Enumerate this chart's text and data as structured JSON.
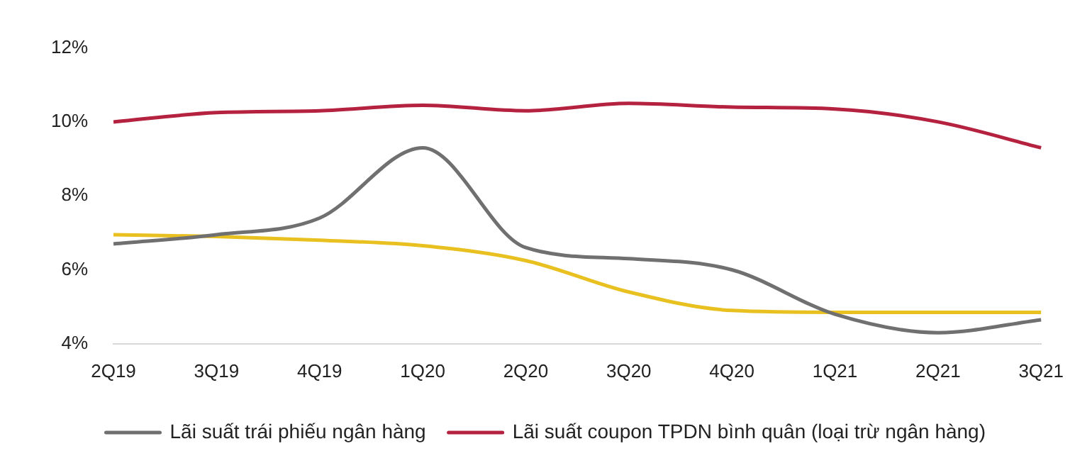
{
  "chart_data": {
    "type": "line",
    "categories": [
      "2Q19",
      "3Q19",
      "4Q19",
      "1Q20",
      "2Q20",
      "3Q20",
      "4Q20",
      "1Q21",
      "2Q21",
      "3Q21"
    ],
    "series": [
      {
        "name": "Lãi suất trái phiếu ngân hàng",
        "color": "#707070",
        "values": [
          6.7,
          6.95,
          7.4,
          9.3,
          6.6,
          6.3,
          6.0,
          4.8,
          4.3,
          4.65
        ]
      },
      {
        "name": "Lãi suất coupon TPDN bình quân (loại trừ ngân hàng)",
        "color": "#b5223f",
        "values": [
          10.0,
          10.25,
          10.3,
          10.45,
          10.3,
          10.5,
          10.4,
          10.35,
          10.0,
          9.3
        ]
      },
      {
        "color": "#e8c020",
        "values": [
          6.95,
          6.9,
          6.8,
          6.65,
          6.25,
          5.4,
          4.9,
          4.85,
          4.85,
          4.85
        ]
      }
    ],
    "ylim": [
      4,
      12
    ],
    "yticks": [
      {
        "value": 4,
        "label": "4%"
      },
      {
        "value": 6,
        "label": "6%"
      },
      {
        "value": 8,
        "label": "8%"
      },
      {
        "value": 10,
        "label": "10%"
      },
      {
        "value": 12,
        "label": "12%"
      }
    ],
    "grid": false,
    "legend": "bottom",
    "marker": "none",
    "line_style": "solid"
  }
}
